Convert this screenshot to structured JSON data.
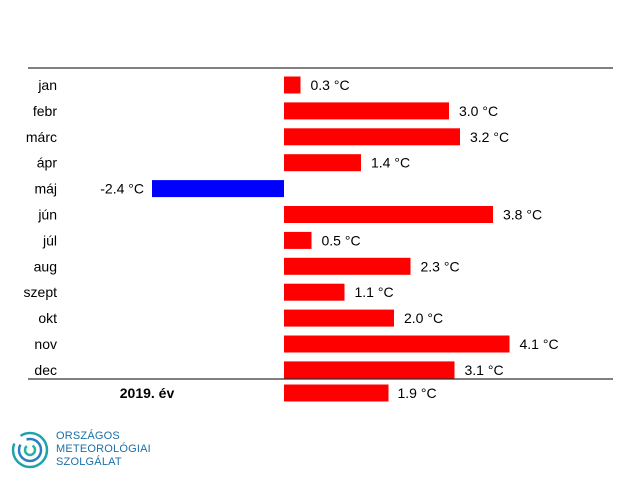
{
  "chart_data": {
    "type": "bar",
    "orientation": "horizontal",
    "categories": [
      "jan",
      "febr",
      "márc",
      "ápr",
      "máj",
      "jún",
      "júl",
      "aug",
      "szept",
      "okt",
      "nov",
      "dec"
    ],
    "values": [
      0.3,
      3.0,
      3.2,
      1.4,
      -2.4,
      3.8,
      0.5,
      2.3,
      1.1,
      2.0,
      4.1,
      3.1
    ],
    "value_labels": [
      "0.3 °C",
      "3.0 °C",
      "3.2 °C",
      "1.4 °C",
      "-2.4 °C",
      "3.8 °C",
      "0.5 °C",
      "2.3 °C",
      "1.1 °C",
      "2.0 °C",
      "4.1 °C",
      "3.1 °C"
    ],
    "annual": {
      "label": "2019. év",
      "value": 1.9,
      "value_label": "1.9 °C"
    },
    "xlim": [
      -2.4,
      5.25
    ],
    "colors": {
      "positive": "#ff0000",
      "negative": "#0000ff"
    },
    "grid": false
  },
  "logo": {
    "lines": [
      "ORSZÁGOS",
      "METEOROLÓGIAI",
      "SZOLGÁLAT"
    ],
    "color": "#1a6fa8",
    "icon": "omsz-swirl-icon"
  }
}
